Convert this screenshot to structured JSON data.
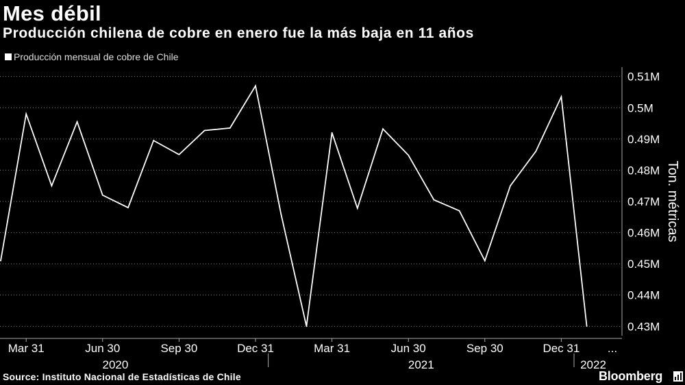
{
  "title": "Mes débil",
  "subtitle": "Producción chilena de cobre en enero fue la más baja en 11 años",
  "legend": {
    "label": "Producción mensual de cobre de Chile"
  },
  "footer": {
    "source": "Source: Instituto Nacional de Estadísticas de Chile",
    "brand": "Bloomberg"
  },
  "colors": {
    "background": "#000000",
    "line": "#ffffff",
    "grid": "#888888",
    "text": "#ffffff"
  },
  "chart_data": {
    "type": "line",
    "title": "Mes débil",
    "subtitle": "Producción chilena de cobre en enero fue la más baja en 11 años",
    "ylabel": "Ton. métricas",
    "ylim": [
      0.427,
      0.513
    ],
    "yticks": [
      0.43,
      0.44,
      0.45,
      0.46,
      0.47,
      0.48,
      0.49,
      0.5,
      0.51
    ],
    "ytick_labels": [
      "0.43M",
      "0.44M",
      "0.45M",
      "0.46M",
      "0.47M",
      "0.48M",
      "0.49M",
      "0.5M",
      "0.51M"
    ],
    "xticks": [
      "Mar 31",
      "Jun 30",
      "Sep 30",
      "Dec 31",
      "Mar 31",
      "Jun 30",
      "Sep 30",
      "Dec 31",
      "..."
    ],
    "year_labels": [
      "2020",
      "2021",
      "2022"
    ],
    "grid": "horizontal dotted",
    "legend_position": "top-left",
    "series": [
      {
        "name": "Producción mensual de cobre de Chile",
        "x": [
          "2020-02",
          "2020-03",
          "2020-04",
          "2020-05",
          "2020-06",
          "2020-07",
          "2020-08",
          "2020-09",
          "2020-10",
          "2020-11",
          "2020-12",
          "2021-01",
          "2021-02",
          "2021-03",
          "2021-04",
          "2021-05",
          "2021-06",
          "2021-07",
          "2021-08",
          "2021-09",
          "2021-10",
          "2021-11",
          "2021-12",
          "2022-01"
        ],
        "values": [
          0.451,
          0.498,
          0.475,
          0.4955,
          0.472,
          0.468,
          0.4895,
          0.485,
          0.4927,
          0.4935,
          0.507,
          0.466,
          0.43,
          0.492,
          0.4678,
          0.4932,
          0.4848,
          0.4705,
          0.467,
          0.451,
          0.475,
          0.486,
          0.5035,
          0.43
        ]
      }
    ]
  }
}
